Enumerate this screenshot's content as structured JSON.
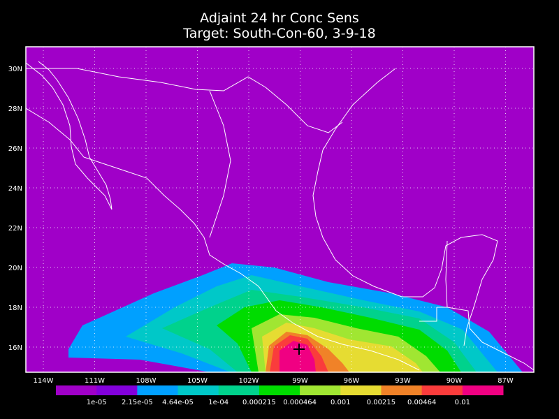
{
  "title": [
    "Adjaint 24 hr Conc Sens",
    "Target: South-Con-60, 3-9-18"
  ],
  "lat_labels": [
    "30N",
    "28N",
    "26N",
    "24N",
    "22N",
    "20N",
    "18N",
    "16N"
  ],
  "lon_labels": [
    "114W",
    "111W",
    "108W",
    "105W",
    "102W",
    "99W",
    "96W",
    "93W",
    "90W",
    "87W"
  ],
  "colorbar": {
    "colors": [
      "#a000c8",
      "#8200dc",
      "#00a0ff",
      "#00c8c8",
      "#00d28c",
      "#00dc00",
      "#a0e632",
      "#e6dc32",
      "#f08228",
      "#fa3c3c",
      "#f00082"
    ],
    "labels": [
      "1e-05",
      "2.15e-05",
      "4.64e-05",
      "1e-04",
      "0.000215",
      "0.000464",
      "0.001",
      "0.00215",
      "0.00464",
      "0.01"
    ]
  }
}
